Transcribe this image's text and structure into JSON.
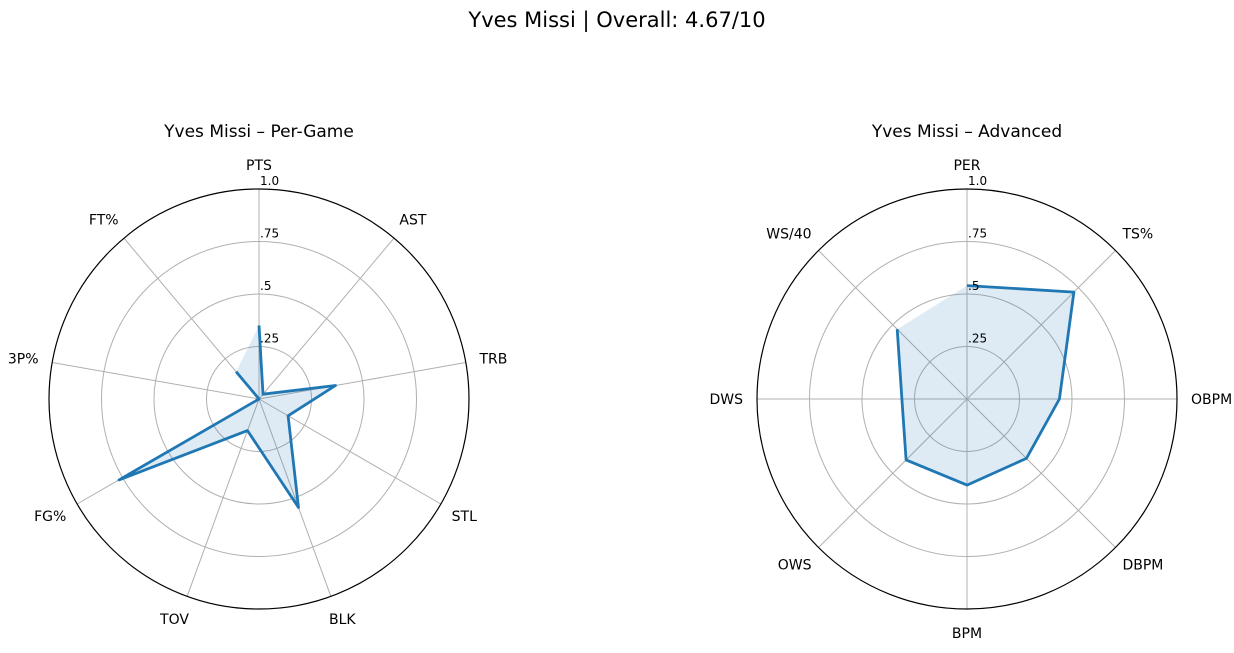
{
  "suptitle": "Yves Missi | Overall: 4.67/10",
  "colors": {
    "line": "#1f77b4",
    "fill": "#1f77b4",
    "grid": "#b0b0b0",
    "frame": "#000000"
  },
  "chart_data": [
    {
      "type": "radar",
      "title": "Yves Missi – Per-Game",
      "categories": [
        "PTS",
        "AST",
        "TRB",
        "STL",
        "BLK",
        "TOV",
        "FG%",
        "3P%",
        "FT%"
      ],
      "values": [
        0.35,
        0.03,
        0.37,
        0.16,
        0.55,
        0.16,
        0.77,
        0.0,
        0.17
      ],
      "rlim": [
        0,
        1
      ],
      "rticks": [
        0.25,
        0.5,
        0.75,
        1.0
      ],
      "rtick_labels": [
        ".25",
        ".5",
        ".75",
        "1.0"
      ],
      "grid": true
    },
    {
      "type": "radar",
      "title": "Yves Missi – Advanced",
      "categories": [
        "PER",
        "TS%",
        "OBPM",
        "DBPM",
        "BPM",
        "OWS",
        "DWS",
        "WS/40"
      ],
      "values": [
        0.54,
        0.72,
        0.44,
        0.4,
        0.41,
        0.41,
        0.31,
        0.47
      ],
      "rlim": [
        0,
        1
      ],
      "rticks": [
        0.25,
        0.5,
        0.75,
        1.0
      ],
      "rtick_labels": [
        ".25",
        ".5",
        ".75",
        "1.0"
      ],
      "grid": true
    }
  ]
}
